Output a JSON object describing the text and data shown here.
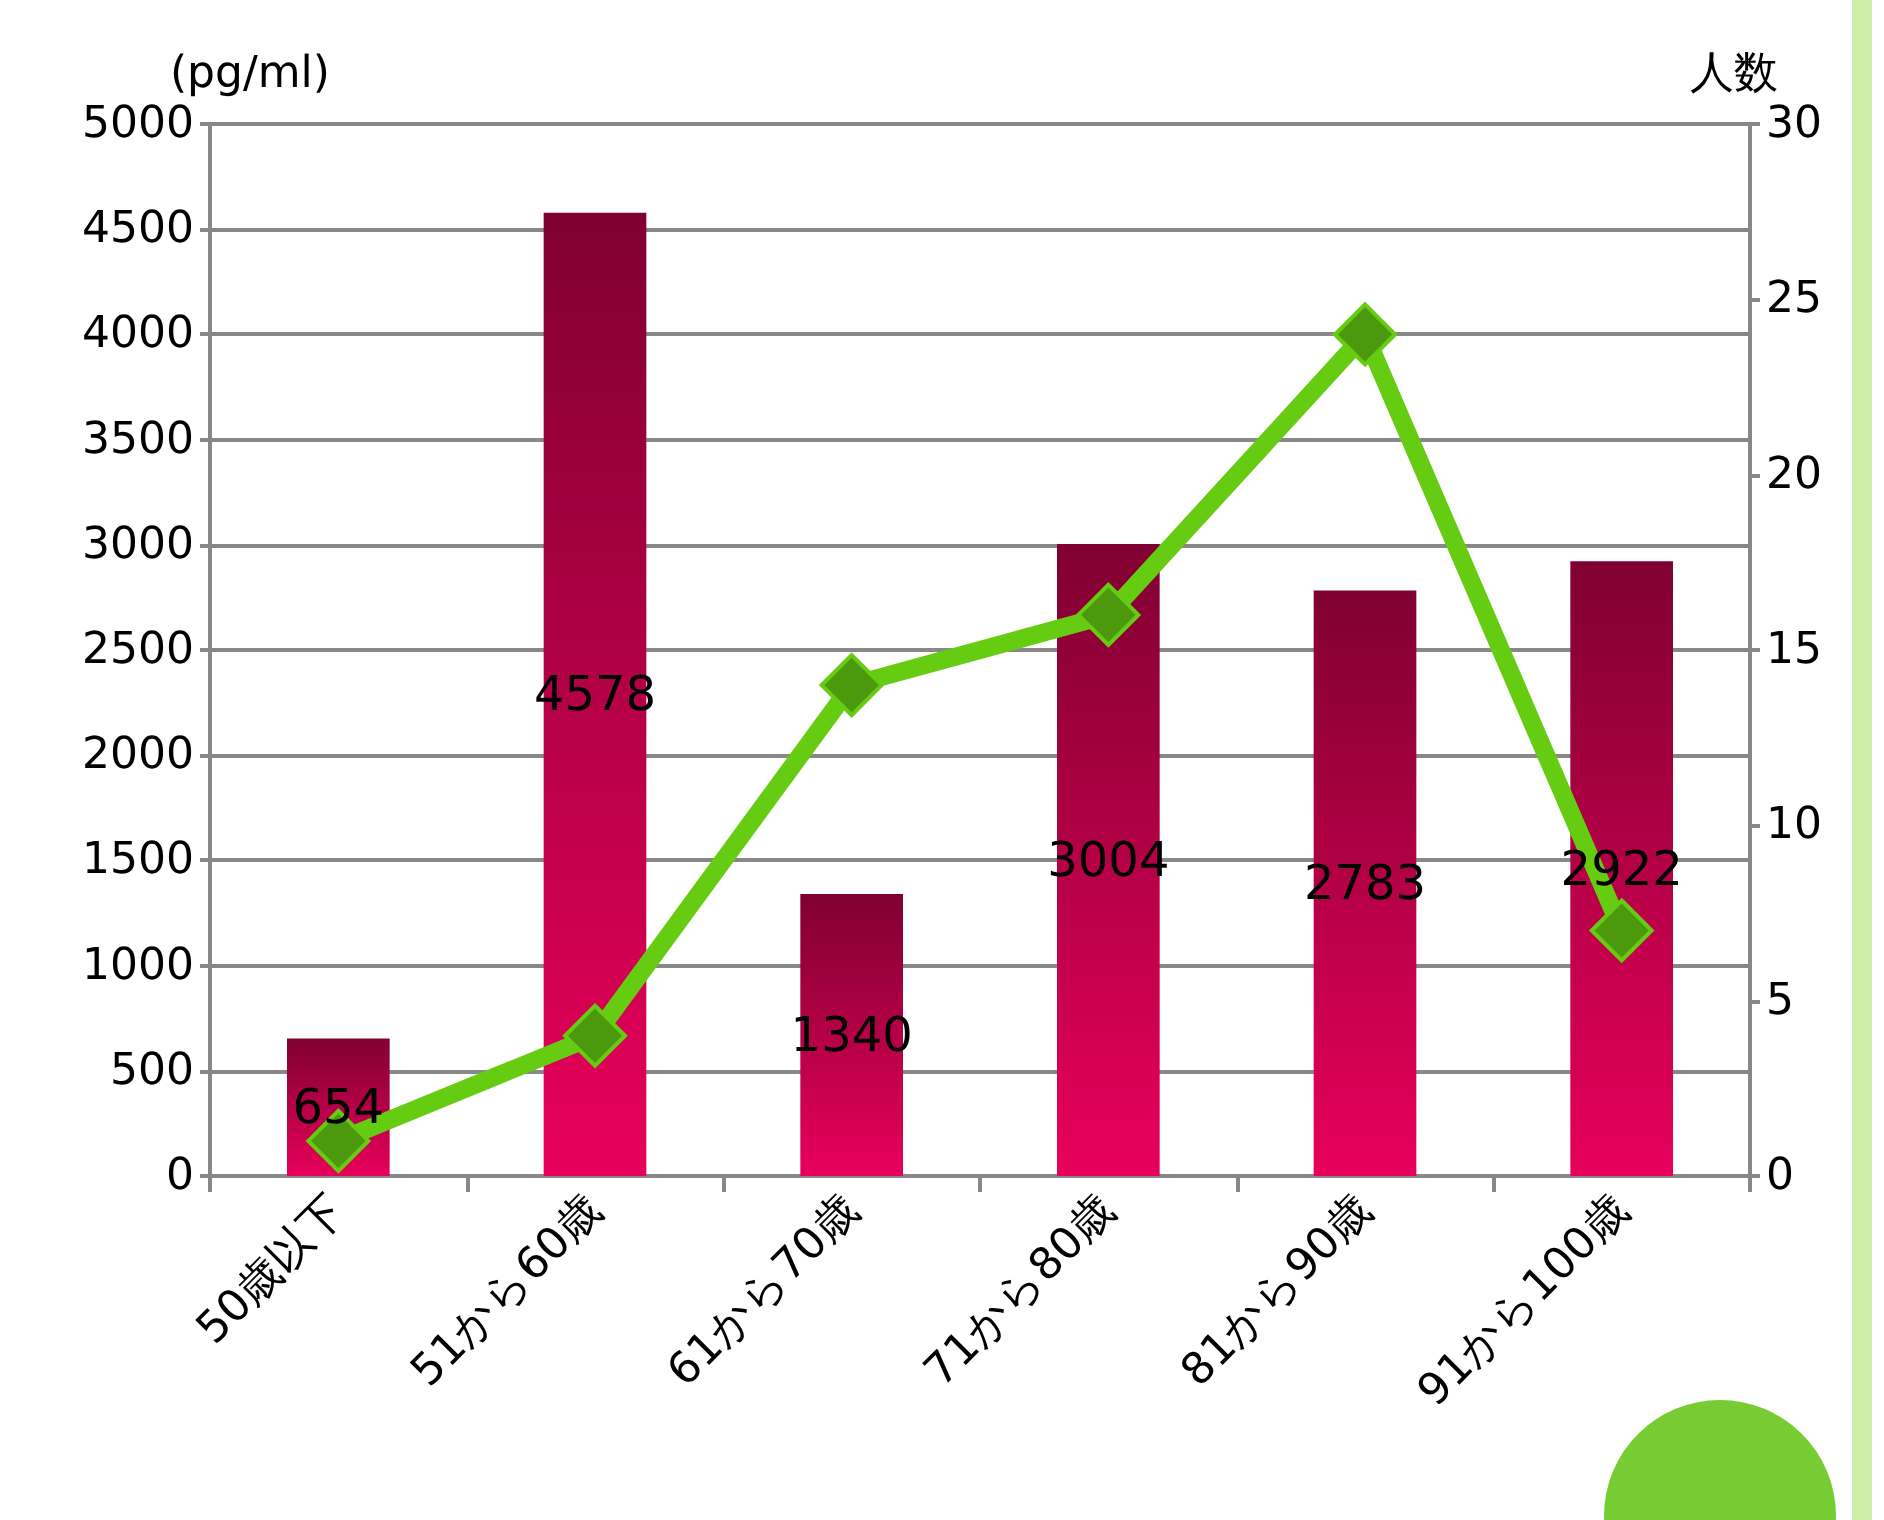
{
  "chart_data": {
    "type": "bar",
    "categories": [
      "50歳以下",
      "51から60歳",
      "61から70歳",
      "71から80歳",
      "81から90歳",
      "91から100歳"
    ],
    "ylabel": "(pg/ml)",
    "y2label": "人数",
    "series": [
      {
        "color": "#e8005a",
        "values": [
          654,
          4578,
          1340,
          3004,
          2783,
          2922
        ],
        "value_labels": [
          "654",
          "4578",
          "1340",
          "3004",
          "2783",
          "2922"
        ]
      },
      {
        "type": "line",
        "axis": "y2",
        "color": "#66cc11",
        "marker": "diamond",
        "values": [
          1,
          4,
          14,
          16,
          24,
          7
        ]
      }
    ],
    "ylim": [
      0,
      5000
    ],
    "yticks": [
      0,
      500,
      1000,
      1500,
      2000,
      2500,
      3000,
      3500,
      4000,
      4500,
      5000
    ],
    "y2lim": [
      0,
      30
    ],
    "y2ticks": [
      0,
      5,
      10,
      15,
      20,
      25,
      30
    ],
    "grid": "y"
  }
}
